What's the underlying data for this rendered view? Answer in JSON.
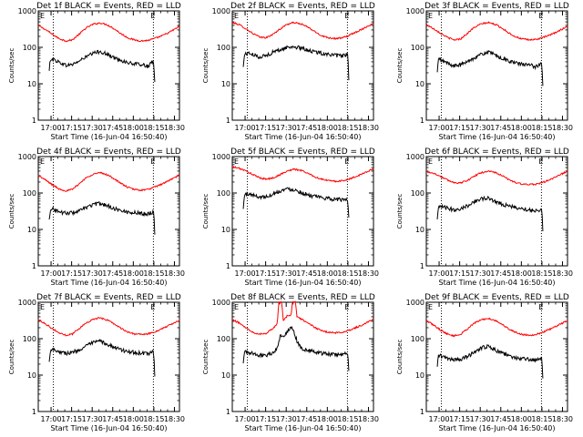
{
  "figure": {
    "xtick_labels": [
      "17:00",
      "17:15",
      "17:30",
      "17:45",
      "18:00",
      "18:15",
      "18:30"
    ],
    "xlabel": "Start Time (16-Jun-04 16:50:40)",
    "ylabel": "Counts/sec",
    "ytick_labels": [
      "1",
      "10",
      "100",
      "1000"
    ],
    "marker_left": "E",
    "marker_right": "E",
    "series_colors": {
      "events": "#000000",
      "lld": "#ff0000"
    }
  },
  "chart_data": [
    {
      "type": "line",
      "title": "Det 1f BLACK = Events, RED = LLD",
      "x_unit": "minutes after 16:50:40",
      "xlim": [
        0,
        103
      ],
      "ylim": [
        1,
        1000
      ],
      "y_scale": "log",
      "vlines": [
        11,
        84
      ],
      "series": [
        {
          "name": "LLD",
          "color": "#ff0000",
          "x": [
            0,
            5,
            10,
            15,
            20,
            25,
            30,
            35,
            40,
            45,
            50,
            55,
            60,
            65,
            70,
            75,
            80,
            85,
            90,
            95,
            100,
            103
          ],
          "values": [
            400,
            310,
            230,
            175,
            150,
            160,
            230,
            340,
            430,
            470,
            420,
            330,
            240,
            185,
            160,
            150,
            155,
            175,
            205,
            250,
            320,
            380
          ]
        },
        {
          "name": "Events",
          "color": "#000000",
          "x": [
            8,
            9,
            12,
            16,
            20,
            25,
            30,
            35,
            40,
            45,
            50,
            55,
            60,
            65,
            70,
            75,
            80,
            84,
            85
          ],
          "values": [
            22,
            50,
            45,
            38,
            32,
            34,
            42,
            55,
            68,
            78,
            65,
            52,
            45,
            38,
            35,
            34,
            30,
            40,
            10
          ]
        }
      ]
    },
    {
      "type": "line",
      "title": "Det 2f BLACK = Events, RED = LLD",
      "x_unit": "minutes after 16:50:40",
      "xlim": [
        0,
        103
      ],
      "ylim": [
        1,
        1000
      ],
      "y_scale": "log",
      "vlines": [
        11,
        84
      ],
      "series": [
        {
          "name": "LLD",
          "color": "#ff0000",
          "x": [
            0,
            5,
            10,
            15,
            20,
            25,
            30,
            35,
            40,
            45,
            50,
            55,
            60,
            65,
            70,
            75,
            80,
            85,
            90,
            95,
            100,
            103
          ],
          "values": [
            480,
            420,
            320,
            240,
            190,
            185,
            230,
            320,
            430,
            480,
            440,
            360,
            270,
            210,
            185,
            175,
            180,
            210,
            260,
            320,
            400,
            450
          ]
        },
        {
          "name": "Events",
          "color": "#000000",
          "x": [
            8,
            9,
            12,
            16,
            20,
            25,
            30,
            35,
            40,
            45,
            50,
            55,
            60,
            65,
            70,
            75,
            80,
            84,
            85
          ],
          "values": [
            28,
            65,
            70,
            60,
            55,
            60,
            75,
            85,
            100,
            105,
            95,
            85,
            75,
            70,
            65,
            60,
            58,
            65,
            12
          ]
        }
      ]
    },
    {
      "type": "line",
      "title": "Det 3f BLACK = Events, RED = LLD",
      "x_unit": "minutes after 16:50:40",
      "xlim": [
        0,
        103
      ],
      "ylim": [
        1,
        1000
      ],
      "y_scale": "log",
      "vlines": [
        11,
        84
      ],
      "series": [
        {
          "name": "LLD",
          "color": "#ff0000",
          "x": [
            0,
            5,
            10,
            15,
            20,
            25,
            30,
            35,
            40,
            45,
            50,
            55,
            60,
            65,
            70,
            75,
            80,
            85,
            90,
            95,
            100,
            103
          ],
          "values": [
            420,
            330,
            250,
            190,
            160,
            170,
            240,
            350,
            440,
            480,
            430,
            340,
            250,
            195,
            170,
            160,
            165,
            185,
            215,
            260,
            330,
            390
          ]
        },
        {
          "name": "Events",
          "color": "#000000",
          "x": [
            8,
            9,
            12,
            16,
            20,
            25,
            30,
            35,
            40,
            45,
            50,
            55,
            60,
            65,
            70,
            75,
            80,
            84,
            85
          ],
          "values": [
            20,
            48,
            42,
            36,
            31,
            33,
            40,
            52,
            64,
            74,
            62,
            50,
            43,
            37,
            34,
            33,
            29,
            38,
            9
          ]
        }
      ]
    },
    {
      "type": "line",
      "title": "Det 4f BLACK = Events, RED = LLD",
      "x_unit": "minutes after 16:50:40",
      "xlim": [
        0,
        103
      ],
      "ylim": [
        1,
        1000
      ],
      "y_scale": "log",
      "vlines": [
        11,
        84
      ],
      "series": [
        {
          "name": "LLD",
          "color": "#ff0000",
          "x": [
            0,
            5,
            10,
            15,
            20,
            25,
            30,
            35,
            40,
            45,
            50,
            55,
            60,
            65,
            70,
            75,
            80,
            85,
            90,
            95,
            100,
            103
          ],
          "values": [
            300,
            230,
            170,
            130,
            115,
            125,
            180,
            260,
            330,
            360,
            320,
            250,
            185,
            145,
            125,
            120,
            125,
            145,
            175,
            215,
            270,
            310
          ]
        },
        {
          "name": "Events",
          "color": "#000000",
          "x": [
            8,
            9,
            12,
            16,
            20,
            25,
            30,
            35,
            40,
            45,
            50,
            55,
            60,
            65,
            70,
            75,
            80,
            84,
            85
          ],
          "values": [
            18,
            38,
            35,
            30,
            28,
            29,
            32,
            40,
            48,
            52,
            46,
            38,
            33,
            30,
            29,
            28,
            27,
            30,
            8
          ]
        }
      ]
    },
    {
      "type": "line",
      "title": "Det 5f BLACK = Events, RED = LLD",
      "x_unit": "minutes after 16:50:40",
      "xlim": [
        0,
        103
      ],
      "ylim": [
        1,
        1000
      ],
      "y_scale": "log",
      "vlines": [
        11,
        84
      ],
      "series": [
        {
          "name": "LLD",
          "color": "#ff0000",
          "x": [
            0,
            5,
            10,
            15,
            20,
            25,
            30,
            35,
            40,
            45,
            50,
            55,
            60,
            65,
            70,
            75,
            80,
            85,
            90,
            95,
            100,
            103
          ],
          "values": [
            520,
            480,
            400,
            320,
            260,
            240,
            260,
            320,
            400,
            450,
            420,
            350,
            280,
            240,
            220,
            210,
            215,
            240,
            280,
            340,
            410,
            460
          ]
        },
        {
          "name": "Events",
          "color": "#000000",
          "x": [
            8,
            9,
            12,
            16,
            20,
            25,
            30,
            35,
            40,
            45,
            50,
            55,
            60,
            65,
            70,
            75,
            80,
            84,
            85
          ],
          "values": [
            35,
            90,
            95,
            85,
            78,
            80,
            95,
            115,
            130,
            125,
            105,
            90,
            80,
            75,
            70,
            68,
            65,
            68,
            20
          ]
        }
      ]
    },
    {
      "type": "line",
      "title": "Det 6f BLACK = Events, RED = LLD",
      "x_unit": "minutes after 16:50:40",
      "xlim": [
        0,
        103
      ],
      "ylim": [
        1,
        1000
      ],
      "y_scale": "log",
      "vlines": [
        11,
        84
      ],
      "series": [
        {
          "name": "LLD",
          "color": "#ff0000",
          "x": [
            0,
            5,
            10,
            15,
            20,
            25,
            30,
            35,
            40,
            45,
            50,
            55,
            60,
            65,
            70,
            75,
            80,
            85,
            90,
            95,
            100,
            103
          ],
          "values": [
            390,
            350,
            290,
            230,
            195,
            190,
            220,
            290,
            360,
            400,
            370,
            300,
            235,
            195,
            175,
            170,
            175,
            195,
            230,
            280,
            350,
            400
          ]
        },
        {
          "name": "Events",
          "color": "#000000",
          "x": [
            8,
            9,
            12,
            16,
            20,
            25,
            30,
            35,
            40,
            45,
            50,
            55,
            60,
            65,
            70,
            75,
            80,
            84,
            85
          ],
          "values": [
            18,
            40,
            42,
            38,
            35,
            37,
            45,
            58,
            70,
            72,
            60,
            50,
            44,
            40,
            37,
            35,
            33,
            36,
            9
          ]
        }
      ]
    },
    {
      "type": "line",
      "title": "Det 7f BLACK = Events, RED = LLD",
      "x_unit": "minutes after 16:50:40",
      "xlim": [
        0,
        103
      ],
      "ylim": [
        1,
        1000
      ],
      "y_scale": "log",
      "vlines": [
        11,
        84
      ],
      "series": [
        {
          "name": "LLD",
          "color": "#ff0000",
          "x": [
            0,
            5,
            10,
            15,
            20,
            25,
            30,
            35,
            40,
            45,
            50,
            55,
            60,
            65,
            70,
            75,
            80,
            85,
            90,
            95,
            100,
            103
          ],
          "values": [
            330,
            260,
            190,
            145,
            125,
            135,
            190,
            270,
            340,
            370,
            330,
            260,
            195,
            155,
            135,
            130,
            135,
            155,
            185,
            225,
            280,
            320
          ]
        },
        {
          "name": "Events",
          "color": "#000000",
          "x": [
            8,
            9,
            12,
            16,
            20,
            25,
            30,
            35,
            40,
            45,
            50,
            55,
            60,
            65,
            70,
            75,
            80,
            84,
            85
          ],
          "values": [
            22,
            52,
            50,
            44,
            40,
            42,
            50,
            62,
            78,
            85,
            72,
            58,
            50,
            45,
            42,
            40,
            38,
            44,
            10
          ]
        }
      ]
    },
    {
      "type": "line",
      "title": "Det 8f BLACK = Events, RED = LLD",
      "x_unit": "minutes after 16:50:40",
      "xlim": [
        0,
        103
      ],
      "ylim": [
        1,
        1000
      ],
      "y_scale": "log",
      "vlines": [
        11,
        84
      ],
      "series": [
        {
          "name": "LLD",
          "color": "#ff0000",
          "x": [
            0,
            5,
            10,
            15,
            20,
            25,
            30,
            33,
            34,
            36,
            37,
            40,
            43,
            44,
            46,
            47,
            50,
            55,
            60,
            65,
            70,
            75,
            80,
            85,
            90,
            95,
            100,
            103
          ],
          "values": [
            330,
            270,
            200,
            150,
            135,
            140,
            200,
            260,
            1000,
            1000,
            300,
            420,
            450,
            1000,
            1000,
            420,
            350,
            270,
            205,
            165,
            150,
            145,
            150,
            170,
            200,
            240,
            300,
            340
          ]
        },
        {
          "name": "Events",
          "color": "#000000",
          "x": [
            8,
            9,
            12,
            16,
            20,
            25,
            30,
            33,
            35,
            37,
            40,
            43,
            45,
            47,
            50,
            55,
            60,
            65,
            70,
            75,
            80,
            84,
            85
          ],
          "values": [
            20,
            45,
            42,
            38,
            35,
            36,
            42,
            55,
            120,
            110,
            160,
            200,
            150,
            90,
            55,
            48,
            44,
            40,
            38,
            37,
            36,
            40,
            12
          ]
        }
      ]
    },
    {
      "type": "line",
      "title": "Det 9f BLACK = Events, RED = LLD",
      "x_unit": "minutes after 16:50:40",
      "xlim": [
        0,
        103
      ],
      "ylim": [
        1,
        1000
      ],
      "y_scale": "log",
      "vlines": [
        11,
        84
      ],
      "series": [
        {
          "name": "LLD",
          "color": "#ff0000",
          "x": [
            0,
            5,
            10,
            15,
            20,
            25,
            30,
            35,
            40,
            45,
            50,
            55,
            60,
            65,
            70,
            75,
            80,
            85,
            90,
            95,
            100,
            103
          ],
          "values": [
            310,
            240,
            175,
            135,
            120,
            130,
            185,
            265,
            330,
            360,
            320,
            250,
            185,
            150,
            130,
            125,
            130,
            150,
            180,
            220,
            275,
            315
          ]
        },
        {
          "name": "Events",
          "color": "#000000",
          "x": [
            8,
            9,
            12,
            16,
            20,
            25,
            30,
            35,
            40,
            45,
            50,
            55,
            60,
            65,
            70,
            75,
            80,
            84,
            85
          ],
          "values": [
            16,
            36,
            32,
            28,
            26,
            27,
            32,
            42,
            56,
            62,
            50,
            40,
            34,
            30,
            28,
            27,
            26,
            30,
            8
          ]
        }
      ]
    }
  ]
}
